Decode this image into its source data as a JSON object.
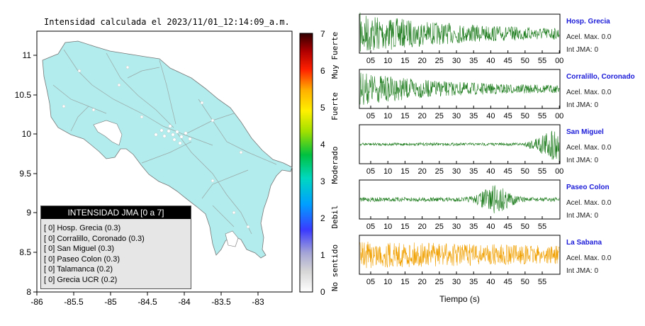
{
  "map": {
    "title": "Intensidad calculada el 2023/11/01_12:14:09_a.m.",
    "x_ticks": [
      "-86",
      "-85.5",
      "-85",
      "-84.5",
      "-84",
      "-83.5",
      "-83"
    ],
    "y_ticks": [
      "11",
      "10.5",
      "10",
      "9.5",
      "9",
      "8.5",
      "8"
    ],
    "land_color": "#b2ecec",
    "sea_color": "#ffffff"
  },
  "legend": {
    "title": "INTENSIDAD JMA [0 a 7]",
    "items": [
      "[ 0] Hosp. Grecia (0.3)",
      "[ 0] Corralillo, Coronado (0.3)",
      "[ 0] San Miguel (0.3)",
      "[ 0] Paseo Colon (0.3)",
      "[ 0] Talamanca (0.2)",
      "[ 0] Grecia UCR (0.2)"
    ]
  },
  "colorbar": {
    "ticks": [
      "7",
      "6",
      "5",
      "4",
      "3",
      "2",
      "1",
      "0"
    ],
    "labels": [
      "Muy Fuerte",
      "Fuerte",
      "Moderado",
      "Debil",
      "No sentido"
    ]
  },
  "stations": [
    {
      "name": "Hosp. Grecia",
      "acel": "Acel. Max. 0.0",
      "jma": "Int JMA: 0",
      "color": "#1a7a1a",
      "ticks": [
        "05",
        "10",
        "15",
        "20",
        "25",
        "30",
        "35",
        "40",
        "45",
        "50",
        "55",
        "00"
      ]
    },
    {
      "name": "Corralillo, Coronado",
      "acel": "Acel. Max. 0.0",
      "jma": "Int JMA: 0",
      "color": "#1a7a1a",
      "ticks": [
        "05",
        "10",
        "15",
        "20",
        "25",
        "30",
        "35",
        "40",
        "45",
        "50",
        "55",
        "00"
      ]
    },
    {
      "name": "San Miguel",
      "acel": "Acel. Max. 0.0",
      "jma": "Int JMA: 0",
      "color": "#1a7a1a",
      "ticks": [
        "05",
        "10",
        "15",
        "20",
        "25",
        "30",
        "35",
        "40",
        "45",
        "50",
        "55",
        "00"
      ]
    },
    {
      "name": "Paseo Colon",
      "acel": "Acel. Max. 0.0",
      "jma": "Int JMA: 0",
      "color": "#1a7a1a",
      "ticks": [
        "05",
        "10",
        "15",
        "20",
        "25",
        "30",
        "35",
        "40",
        "45",
        "50",
        "55"
      ]
    },
    {
      "name": "La Sabana",
      "acel": "Acel. Max. 0.0",
      "jma": "Int JMA: 0",
      "color": "#f0a000",
      "ticks": [
        "05",
        "10",
        "15",
        "20",
        "25",
        "30",
        "35",
        "40",
        "45",
        "50",
        "55"
      ]
    }
  ],
  "time_axis_label": "Tiempo (s)"
}
